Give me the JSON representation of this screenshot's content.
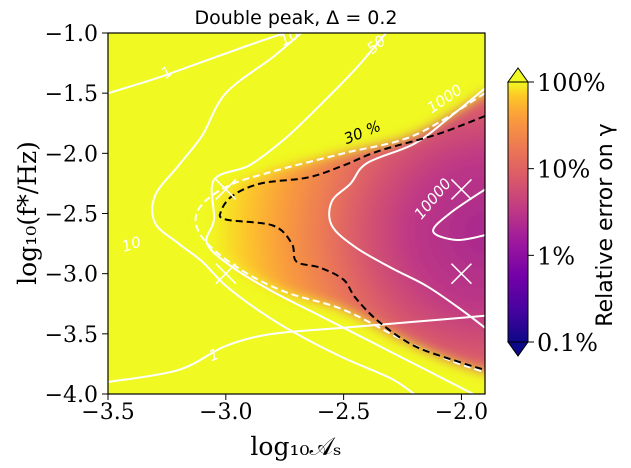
{
  "chart_data": {
    "type": "heatmap",
    "title": "Double peak,  Δ = 0.2",
    "xlabel": "log₁₀𝒜ₛ",
    "ylabel": "log₁₀(f*/Hz)",
    "xlim": [
      -3.5,
      -1.9
    ],
    "ylim": [
      -4.0,
      -1.0
    ],
    "x_ticks": [
      -3.5,
      -3.0,
      -2.5,
      -2.0
    ],
    "x_tick_labels": [
      "−3.5",
      "−3.0",
      "−2.5",
      "−2.0"
    ],
    "y_ticks": [
      -1.0,
      -1.5,
      -2.0,
      -2.5,
      -3.0,
      -3.5,
      -4.0
    ],
    "y_tick_labels": [
      "−1.0",
      "−1.5",
      "−2.0",
      "−2.5",
      "−3.0",
      "−3.5",
      "−4.0"
    ],
    "colorbar": {
      "label": "Relative error on γ",
      "scale": "log",
      "range_percent": [
        0.1,
        100
      ],
      "ticks": [
        0.1,
        1,
        10,
        100
      ],
      "tick_labels": [
        "0.1%",
        "1%",
        "10%",
        "100%"
      ],
      "colormap": "plasma",
      "extend": "both"
    },
    "snr_contours": {
      "color": "#ffffff",
      "levels": [
        {
          "level": 1,
          "label": "1",
          "points": [
            [
              -3.5,
              -3.9
            ],
            [
              -3.2,
              -3.8
            ],
            [
              -3.0,
              -3.6
            ],
            [
              -2.8,
              -3.5
            ],
            [
              -2.5,
              -3.45
            ],
            [
              -2.2,
              -3.4
            ],
            [
              -1.9,
              -3.35
            ]
          ]
        },
        {
          "level": 1,
          "label": "1",
          "points": [
            [
              -3.5,
              -1.5
            ],
            [
              -3.3,
              -1.38
            ],
            [
              -3.1,
              -1.24
            ],
            [
              -2.9,
              -1.1
            ],
            [
              -2.75,
              -1.0
            ]
          ]
        },
        {
          "level": 10,
          "label": "10",
          "points": [
            [
              -2.68,
              -1.0
            ],
            [
              -2.8,
              -1.2
            ],
            [
              -3.0,
              -1.5
            ],
            [
              -3.1,
              -1.85
            ],
            [
              -3.2,
              -2.1
            ],
            [
              -3.3,
              -2.35
            ],
            [
              -3.3,
              -2.58
            ],
            [
              -3.2,
              -2.75
            ],
            [
              -3.1,
              -2.9
            ],
            [
              -3.0,
              -3.1
            ],
            [
              -2.85,
              -3.32
            ],
            [
              -2.7,
              -3.5
            ],
            [
              -2.5,
              -3.7
            ],
            [
              -2.3,
              -3.87
            ],
            [
              -2.2,
              -4.0
            ]
          ]
        },
        {
          "level": 50,
          "label": "50",
          "points": [
            [
              -2.32,
              -1.0
            ],
            [
              -2.45,
              -1.3
            ],
            [
              -2.6,
              -1.6
            ],
            [
              -2.75,
              -1.88
            ],
            [
              -2.9,
              -2.1
            ],
            [
              -3.05,
              -2.22
            ],
            [
              -3.05,
              -2.55
            ],
            [
              -3.08,
              -2.75
            ],
            [
              -2.97,
              -2.95
            ],
            [
              -2.8,
              -3.15
            ],
            [
              -2.6,
              -3.35
            ],
            [
              -2.4,
              -3.55
            ],
            [
              -2.2,
              -3.75
            ],
            [
              -2.05,
              -3.9
            ],
            [
              -1.95,
              -4.0
            ]
          ]
        },
        {
          "level": 1000,
          "label": "1000",
          "points": [
            [
              -1.9,
              -1.46
            ],
            [
              -2.05,
              -1.7
            ],
            [
              -2.2,
              -1.92
            ],
            [
              -2.4,
              -2.08
            ],
            [
              -2.47,
              -2.25
            ],
            [
              -2.55,
              -2.4
            ],
            [
              -2.55,
              -2.6
            ],
            [
              -2.45,
              -2.78
            ],
            [
              -2.3,
              -2.95
            ],
            [
              -2.15,
              -3.1
            ],
            [
              -2.0,
              -3.3
            ],
            [
              -1.9,
              -3.45
            ]
          ]
        },
        {
          "level": 10000,
          "label": "10000",
          "points": [
            [
              -1.9,
              -2.3
            ],
            [
              -2.05,
              -2.5
            ],
            [
              -2.12,
              -2.65
            ],
            [
              -2.02,
              -2.72
            ],
            [
              -1.9,
              -2.68
            ]
          ]
        }
      ]
    },
    "error_30_percent_contour": {
      "label": "30 %",
      "style": "dashed",
      "color": "#000000",
      "points": [
        [
          -1.9,
          -1.69
        ],
        [
          -2.1,
          -1.84
        ],
        [
          -2.35,
          -1.98
        ],
        [
          -2.5,
          -2.1
        ],
        [
          -2.65,
          -2.2
        ],
        [
          -2.85,
          -2.25
        ],
        [
          -2.97,
          -2.35
        ],
        [
          -3.02,
          -2.48
        ],
        [
          -3.0,
          -2.55
        ],
        [
          -2.8,
          -2.6
        ],
        [
          -2.72,
          -2.75
        ],
        [
          -2.7,
          -2.9
        ],
        [
          -2.6,
          -2.95
        ],
        [
          -2.5,
          -3.05
        ],
        [
          -2.45,
          -3.2
        ],
        [
          -2.35,
          -3.4
        ],
        [
          -2.2,
          -3.6
        ],
        [
          -2.0,
          -3.74
        ],
        [
          -1.9,
          -3.8
        ]
      ]
    },
    "boundary_contour": {
      "style": "dashed",
      "color": "#ffffff",
      "points": [
        [
          -1.9,
          -1.5
        ],
        [
          -2.2,
          -1.85
        ],
        [
          -2.5,
          -2.0
        ],
        [
          -2.8,
          -2.15
        ],
        [
          -3.0,
          -2.28
        ],
        [
          -3.12,
          -2.48
        ],
        [
          -3.1,
          -2.7
        ],
        [
          -2.95,
          -2.95
        ],
        [
          -2.75,
          -3.15
        ],
        [
          -2.5,
          -3.3
        ],
        [
          -2.25,
          -3.55
        ],
        [
          -2.05,
          -3.72
        ],
        [
          -1.9,
          -3.82
        ]
      ]
    },
    "fiducial_markers": {
      "symbol": "x",
      "color": "#ffffff",
      "points": [
        [
          -3.0,
          -2.3
        ],
        [
          -3.0,
          -3.0
        ],
        [
          -2.0,
          -2.3
        ],
        [
          -2.0,
          -3.0
        ]
      ]
    }
  }
}
